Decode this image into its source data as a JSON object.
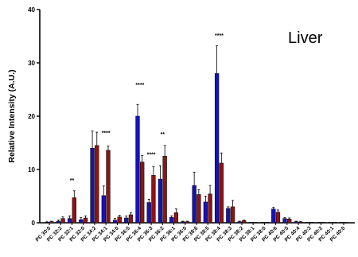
{
  "chart_data": {
    "type": "bar",
    "title": "Liver",
    "xlabel": "",
    "ylabel": "Relative Intensity (A.U.)",
    "ylim": [
      0,
      40
    ],
    "yticks": [
      0,
      10,
      20,
      30,
      40
    ],
    "grid": false,
    "legend": "none",
    "categories": [
      "PC 30:0",
      "PC 32:2",
      "PC 32:1",
      "PC 32:0",
      "PC 34:2",
      "PC 34:1",
      "PC 34:0",
      "PC 36:5",
      "PC 36:4",
      "PC 36:3",
      "PC 36:2",
      "PC 36:1",
      "PC 36:0",
      "PC 38:6",
      "PC 38:5",
      "PC 38:4",
      "PC 38:3",
      "PC 38:2",
      "PC 38:1",
      "PC 38:0",
      "PC 40:6",
      "PC 40:5",
      "PC 40:4",
      "PC 40:3",
      "PC 40:2",
      "PC 40:1",
      "PC 40:0"
    ],
    "series": [
      {
        "color": "#1414b4",
        "values": [
          0.1,
          0.3,
          0.8,
          0.6,
          14.0,
          5.1,
          0.5,
          0.9,
          20.0,
          3.8,
          8.2,
          1.0,
          0.2,
          7.0,
          3.9,
          28.0,
          2.7,
          0.2,
          0.05,
          0.05,
          2.6,
          0.8,
          0.2,
          0.1,
          0.05,
          0.05,
          0.05
        ],
        "errors": [
          0.1,
          0.2,
          0.5,
          0.4,
          3.2,
          1.8,
          0.3,
          0.4,
          2.2,
          0.6,
          2.5,
          0.3,
          0.1,
          2.5,
          1.1,
          5.2,
          0.3,
          0.1,
          0.05,
          0.05,
          0.3,
          0.2,
          0.1,
          0.05,
          0.05,
          0.05,
          0.05
        ]
      },
      {
        "color": "#8c1414",
        "values": [
          0.2,
          0.8,
          4.7,
          0.9,
          14.5,
          13.6,
          1.1,
          1.5,
          11.4,
          8.9,
          12.5,
          1.9,
          0.2,
          5.3,
          5.4,
          11.2,
          3.0,
          0.4,
          0.05,
          0.05,
          2.0,
          0.7,
          0.15,
          0.1,
          0.05,
          0.05,
          0.05
        ],
        "errors": [
          0.1,
          0.3,
          1.3,
          0.4,
          2.5,
          0.8,
          0.3,
          0.4,
          1.2,
          1.6,
          2.0,
          0.7,
          0.1,
          0.9,
          1.6,
          1.9,
          1.2,
          0.1,
          0.05,
          0.05,
          0.4,
          0.2,
          0.1,
          0.05,
          0.05,
          0.05,
          0.05
        ]
      }
    ],
    "annotations": [
      {
        "category": "PC 32:1",
        "text": "**",
        "y": 7.6
      },
      {
        "category": "PC 34:1",
        "text": "****",
        "y": 16.5
      },
      {
        "category": "PC 36:4",
        "text": "****",
        "y": 25.5
      },
      {
        "category": "PC 36:3",
        "text": "****",
        "y": 12.5
      },
      {
        "category": "PC 36:2",
        "text": "**",
        "y": 16.3
      },
      {
        "category": "PC 38:4",
        "text": "****",
        "y": 34.8
      }
    ]
  }
}
